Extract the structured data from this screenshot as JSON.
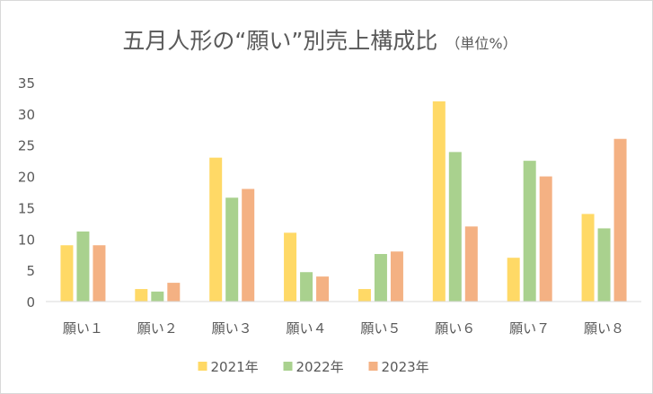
{
  "chart_data": {
    "type": "bar",
    "title": "五月人形の“願い”別売上構成比",
    "subtitle": "（単位%）",
    "categories": [
      "願い１",
      "願い２",
      "願い３",
      "願い４",
      "願い５",
      "願い６",
      "願い７",
      "願い８"
    ],
    "series": [
      {
        "name": "2021年",
        "color": "#ffd966",
        "values": [
          9,
          2,
          23,
          11,
          2,
          32,
          7,
          14
        ]
      },
      {
        "name": "2022年",
        "color": "#a9d18e",
        "values": [
          11.2,
          1.6,
          16.6,
          4.7,
          7.6,
          23.9,
          22.5,
          11.7
        ]
      },
      {
        "name": "2023年",
        "color": "#f4b183",
        "values": [
          9,
          3,
          18,
          4,
          8,
          12,
          20,
          26
        ]
      }
    ],
    "ylim": [
      0,
      35
    ],
    "yticks": [
      0,
      5,
      10,
      15,
      20,
      25,
      30,
      35
    ],
    "xlabel": "",
    "ylabel": "",
    "grid": false,
    "legend": "bottom",
    "axis_color": "#d9d9d9"
  }
}
